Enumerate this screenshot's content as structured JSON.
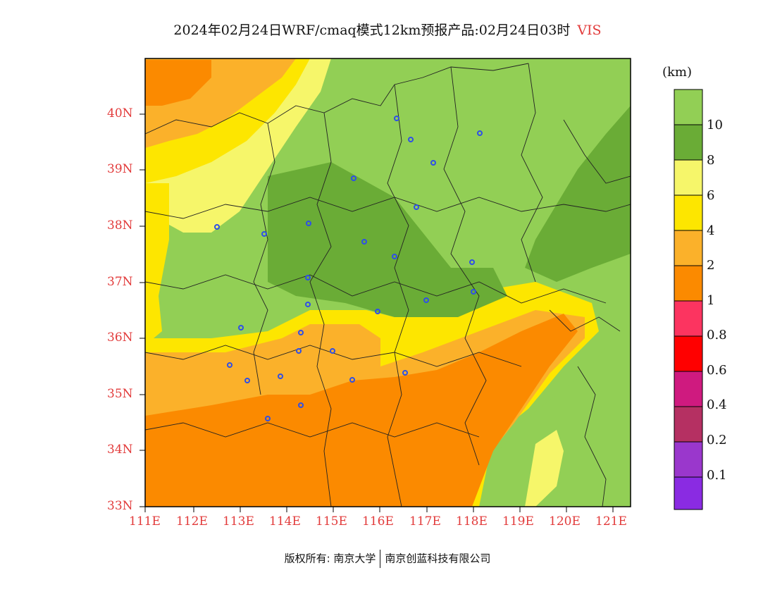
{
  "title": {
    "text": "2024年02月24日WRF/cmaq模式12km预报产品:02月24日03时",
    "variable": "VIS"
  },
  "map": {
    "x_ticks": [
      "111E",
      "112E",
      "113E",
      "114E",
      "115E",
      "116E",
      "117E",
      "118E",
      "119E",
      "120E",
      "121E"
    ],
    "y_ticks": [
      "33N",
      "34N",
      "35N",
      "36N",
      "37N",
      "38N",
      "39N",
      "40N"
    ]
  },
  "legend": {
    "unit": "(km)",
    "labels": [
      "10",
      "8",
      "6",
      "4",
      "2",
      "1",
      "0.8",
      "0.6",
      "0.4",
      "0.2",
      "0.1"
    ],
    "colors": [
      "#92cf55",
      "#6aac36",
      "#f6f66a",
      "#fde600",
      "#fbb12a",
      "#fb8a00",
      "#fc3460",
      "#ff0000",
      "#cf1a7f",
      "#b53062",
      "#9a37cc",
      "#8a2be2"
    ]
  },
  "footer": {
    "left": "版权所有: 南京大学",
    "right": "南京创蓝科技有限公司"
  },
  "colors": {
    "axis_text": "#e23b3b",
    "city_marker": "#2e4fe8",
    "boundary": "#222222"
  },
  "chart_data": {
    "type": "heatmap",
    "title": "2024年02月24日WRF/cmaq模式12km预报产品:02月24日03时 VIS",
    "variable": "VIS",
    "xlabel": "",
    "ylabel": "",
    "x_range": [
      "111E",
      "121.4E"
    ],
    "y_range": [
      "33N",
      "41N"
    ],
    "levels_km": [
      0.1,
      0.2,
      0.4,
      0.6,
      0.8,
      1,
      2,
      4,
      6,
      8,
      10
    ]
  }
}
